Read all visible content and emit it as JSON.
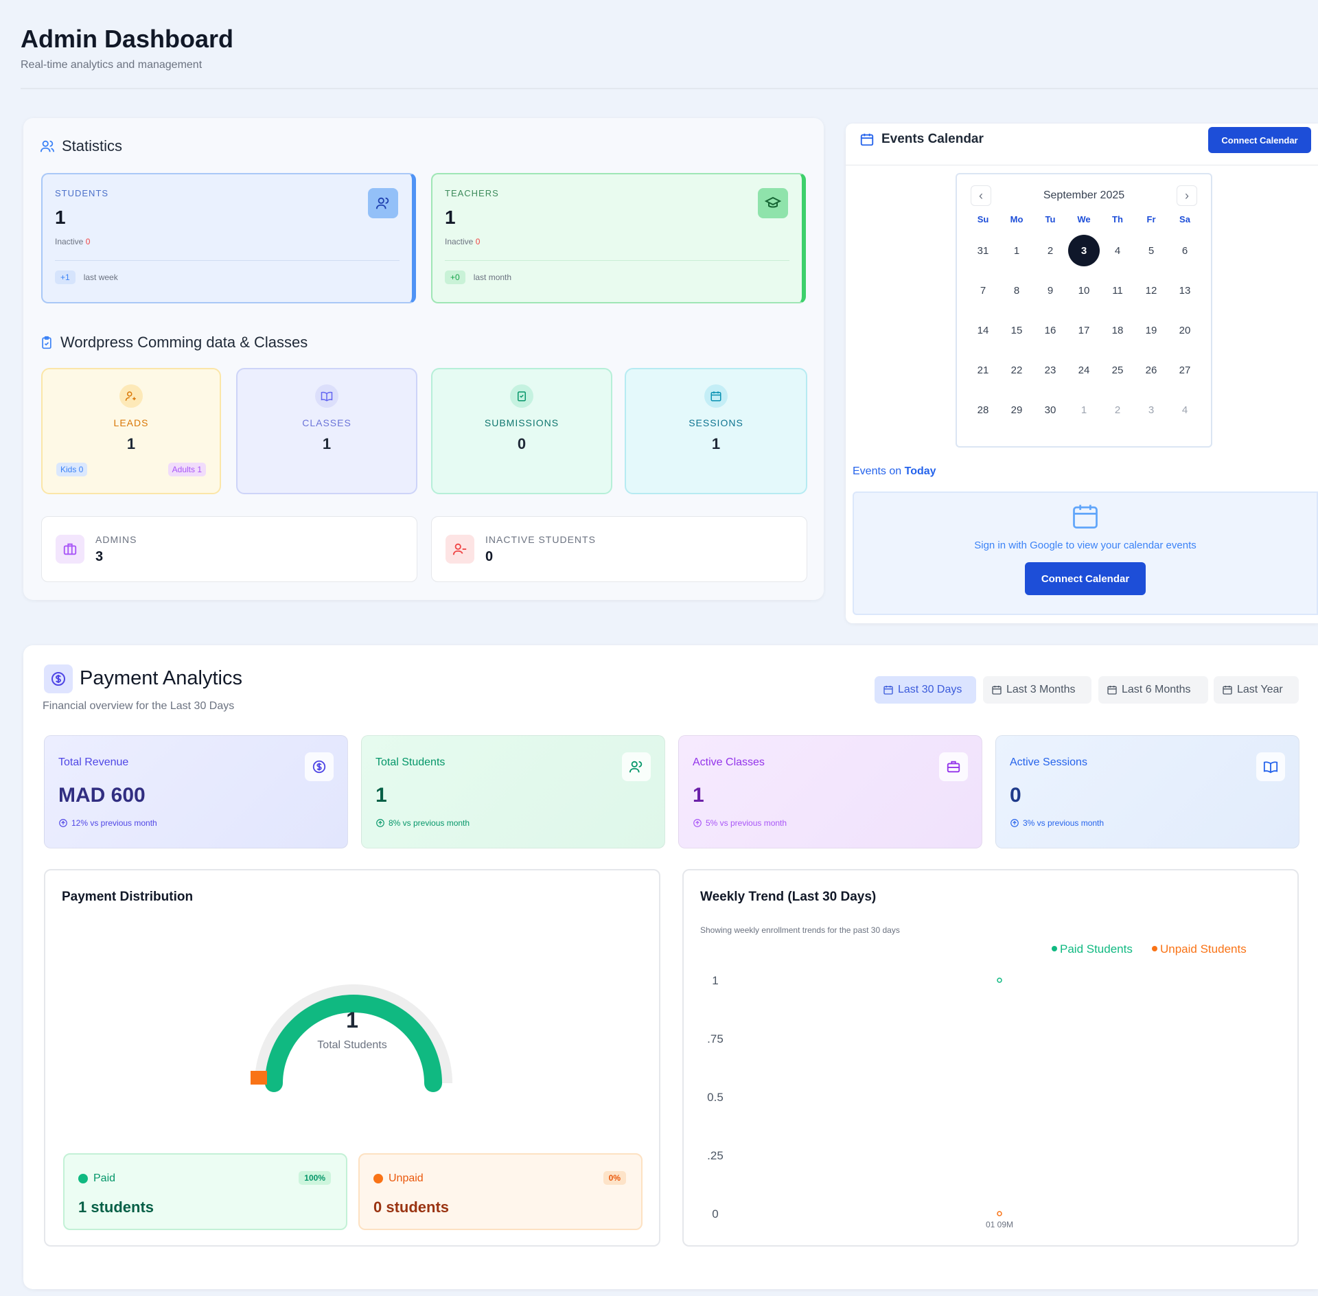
{
  "header": {
    "title": "Admin Dashboard",
    "subtitle": "Real-time analytics and management"
  },
  "statistics": {
    "title": "Statistics",
    "students": {
      "label": "STUDENTS",
      "value": "1",
      "inactive_label": "Inactive",
      "inactive_value": "0",
      "delta": "+1",
      "period": "last week"
    },
    "teachers": {
      "label": "TEACHERS",
      "value": "1",
      "inactive_label": "Inactive",
      "inactive_value": "0",
      "delta": "+0",
      "period": "last month"
    }
  },
  "wordpress": {
    "title": "Wordpress Comming data & Classes",
    "leads": {
      "label": "LEADS",
      "value": "1",
      "kids": "Kids 0",
      "adults": "Adults 1"
    },
    "classes": {
      "label": "CLASSES",
      "value": "1"
    },
    "submissions": {
      "label": "SUBMISSIONS",
      "value": "0"
    },
    "sessions": {
      "label": "SESSIONS",
      "value": "1"
    },
    "admins": {
      "label": "ADMINS",
      "value": "3"
    },
    "inactive_students": {
      "label": "INACTIVE STUDENTS",
      "value": "0"
    }
  },
  "calendar": {
    "title": "Events Calendar",
    "connect_top": "Connect Calendar",
    "month": "September 2025",
    "prev": "‹",
    "next": "›",
    "day_names": [
      "Su",
      "Mo",
      "Tu",
      "We",
      "Th",
      "Fr",
      "Sa"
    ],
    "weeks": [
      [
        "31",
        "1",
        "2",
        "3",
        "4",
        "5",
        "6"
      ],
      [
        "7",
        "8",
        "9",
        "10",
        "11",
        "12",
        "13"
      ],
      [
        "14",
        "15",
        "16",
        "17",
        "18",
        "19",
        "20"
      ],
      [
        "21",
        "22",
        "23",
        "24",
        "25",
        "26",
        "27"
      ],
      [
        "28",
        "29",
        "30",
        "1",
        "2",
        "3",
        "4"
      ]
    ],
    "today": "3",
    "events_label": "Events on",
    "events_today": "Today",
    "sign_in_text": "Sign in with Google to view your calendar events",
    "connect_bottom": "Connect Calendar"
  },
  "payment": {
    "title": "Payment Analytics",
    "subtitle": "Financial overview for the Last 30 Days",
    "ranges": [
      "Last 30 Days",
      "Last 3 Months",
      "Last 6 Months",
      "Last Year"
    ],
    "active_range": "Last 30 Days",
    "kpis": [
      {
        "label": "Total Revenue",
        "value": "MAD 600",
        "change": "12% vs previous month"
      },
      {
        "label": "Total Students",
        "value": "1",
        "change": "8% vs previous month"
      },
      {
        "label": "Active Classes",
        "value": "1",
        "change": "5% vs previous month"
      },
      {
        "label": "Active Sessions",
        "value": "0",
        "change": "3% vs previous month"
      }
    ]
  },
  "distribution": {
    "title": "Payment Distribution",
    "total": "1",
    "total_label": "Total Students",
    "paid_label": "Paid",
    "paid_pct": "100%",
    "paid_count": "1 students",
    "unpaid_label": "Unpaid",
    "unpaid_pct": "0%",
    "unpaid_count": "0 students",
    "colors": {
      "paid": "#10b981",
      "unpaid": "#f97316",
      "track": "#eeeeee"
    }
  },
  "chart_data": [
    {
      "type": "pie",
      "title": "Payment Distribution",
      "categories": [
        "Paid",
        "Unpaid"
      ],
      "values": [
        1,
        0
      ]
    },
    {
      "type": "line",
      "title": "Weekly Trend (Last 30 Days)",
      "subtitle": "Showing weekly enrollment trends for the past 30 days",
      "x": [
        "01 09M"
      ],
      "series": [
        {
          "name": "Paid Students",
          "values": [
            1
          ],
          "color": "#10b981"
        },
        {
          "name": "Unpaid Students",
          "values": [
            0
          ],
          "color": "#f97316"
        }
      ],
      "yticks": [
        "1",
        ".75",
        "0.5",
        ".25",
        "0"
      ],
      "ylim": [
        0,
        1
      ],
      "legend": "top-right"
    }
  ]
}
